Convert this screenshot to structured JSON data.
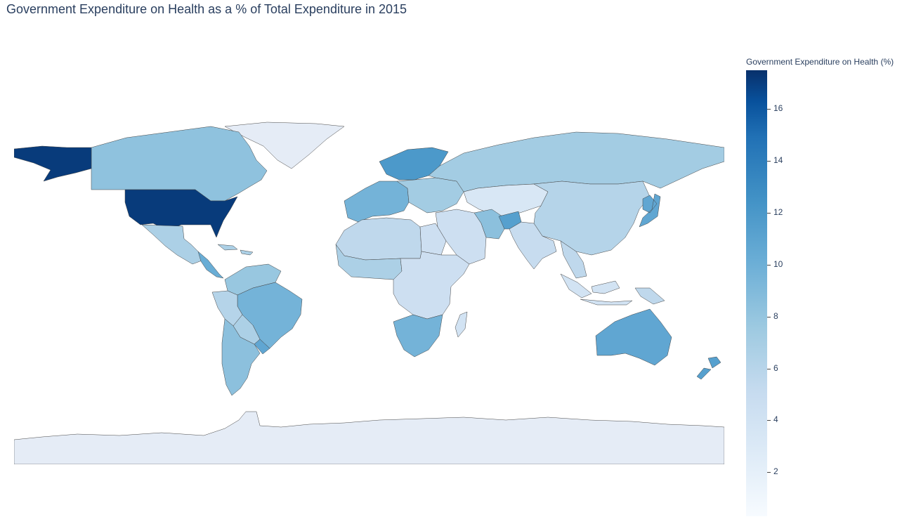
{
  "title": "Government Expenditure on Health as a % of Total Expenditure in 2015",
  "map": {
    "type": "choropleth",
    "colorscale": "Blues",
    "land_no_data_color": "#e5ecf6",
    "border_color": "#444444",
    "regions": [
      {
        "name": "United States",
        "value": 16.8
      },
      {
        "name": "Alaska",
        "value": 16.8
      },
      {
        "name": "Canada",
        "value": 7.4
      },
      {
        "name": "Greenland",
        "value": null
      },
      {
        "name": "Mexico",
        "value": 6.0
      },
      {
        "name": "Central America",
        "value": 9.0
      },
      {
        "name": "Caribbean",
        "value": 6.0
      },
      {
        "name": "Colombia & Venezuela",
        "value": 7.0
      },
      {
        "name": "Peru & Ecuador",
        "value": 5.5
      },
      {
        "name": "Bolivia & Paraguay",
        "value": 6.0
      },
      {
        "name": "Brazil",
        "value": 8.5
      },
      {
        "name": "Argentina & Chile",
        "value": 7.5
      },
      {
        "name": "Uruguay",
        "value": 9.5
      },
      {
        "name": "Western Europe",
        "value": 8.5
      },
      {
        "name": "Scandinavia",
        "value": 10.5
      },
      {
        "name": "Eastern Europe",
        "value": 6.5
      },
      {
        "name": "Russia",
        "value": 6.5
      },
      {
        "name": "Kazakhstan & Central Asia",
        "value": 3.0
      },
      {
        "name": "China & Mongolia",
        "value": 5.5
      },
      {
        "name": "Japan & Korea",
        "value": 9.5
      },
      {
        "name": "India",
        "value": 4.5
      },
      {
        "name": "Middle East",
        "value": 4.0
      },
      {
        "name": "Iran",
        "value": 7.5
      },
      {
        "name": "Afghanistan",
        "value": 10.0
      },
      {
        "name": "Southeast Asia",
        "value": 5.0
      },
      {
        "name": "Indonesia",
        "value": 3.5
      },
      {
        "name": "Papua New Guinea",
        "value": 5.0
      },
      {
        "name": "North Africa",
        "value": 5.0
      },
      {
        "name": "Egypt",
        "value": 4.0
      },
      {
        "name": "West Africa",
        "value": 6.0
      },
      {
        "name": "Central & East Africa",
        "value": 4.0
      },
      {
        "name": "Southern Africa",
        "value": 8.5
      },
      {
        "name": "Madagascar",
        "value": 3.5
      },
      {
        "name": "Australia",
        "value": 9.5
      },
      {
        "name": "New Zealand",
        "value": 10.0
      },
      {
        "name": "Antarctica",
        "value": null
      }
    ]
  },
  "colorbar": {
    "title": "Government Expenditure on Health (%)",
    "min": 0.3,
    "max": 17.5,
    "ticks": [
      "2",
      "4",
      "6",
      "8",
      "10",
      "12",
      "14",
      "16"
    ]
  }
}
